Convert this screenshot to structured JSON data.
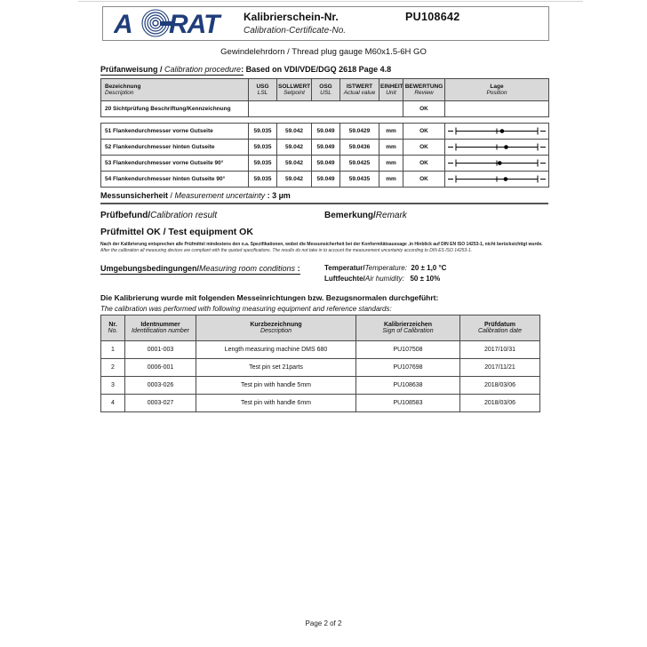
{
  "header": {
    "logo": {
      "letter_a": "A",
      "letters_rat": "RAT",
      "brand_color": "#1f3d7a"
    },
    "title_de": "Kalibrierschein-Nr.",
    "title_en": "Calibration-Certificate-No.",
    "certificate_no": "PU108642"
  },
  "subject_line": "Gewindelehrdorn / Thread plug gauge  M60x1.5-6H GO",
  "procedure": {
    "label_de": "Prüfanweisung / ",
    "label_en": "Calibration procedure",
    "colon": ":",
    "value": "Based on VDI/VDE/DGQ 2618 Page 4.8"
  },
  "measurement_table": {
    "headers": [
      {
        "de": "Bezeichnung",
        "en": "Description"
      },
      {
        "de": "USG",
        "en": "LSL"
      },
      {
        "de": "SOLLWERT",
        "en": "Setpoint"
      },
      {
        "de": "OSG",
        "en": "USL"
      },
      {
        "de": "ISTWERT",
        "en": "Actual value"
      },
      {
        "de": "EINHEIT",
        "en": "Unit"
      },
      {
        "de": "BEWERTUNG",
        "en": "Review"
      },
      {
        "de": "Lage",
        "en": "Position"
      }
    ],
    "visual_row": {
      "description": "20 Sichtprüfung Beschriftung/Kennzeichnung",
      "review": "OK"
    },
    "rows": [
      {
        "description": "51 Flankendurchmesser vorne Gutseite",
        "usg": "59.035",
        "sollwert": "59.042",
        "osg": "59.049",
        "istwert": "59.0429",
        "unit": "mm",
        "review": "OK"
      },
      {
        "description": "52 Flankendurchmesser hinten Gutseite",
        "usg": "59.035",
        "sollwert": "59.042",
        "osg": "59.049",
        "istwert": "59.0436",
        "unit": "mm",
        "review": "OK"
      },
      {
        "description": "53 Flankendurchmesser vorne Gutseite 90°",
        "usg": "59.035",
        "sollwert": "59.042",
        "osg": "59.049",
        "istwert": "59.0425",
        "unit": "mm",
        "review": "OK"
      },
      {
        "description": "54 Flankendurchmesser hinten Gutseite 90°",
        "usg": "59.035",
        "sollwert": "59.042",
        "osg": "59.049",
        "istwert": "59.0435",
        "unit": "mm",
        "review": "OK"
      }
    ]
  },
  "uncertainty": {
    "label_de": "Messunsicherheit",
    "separator": " / ",
    "label_en": "Measurement uncertainty",
    "colon": " : ",
    "value": "3 µm"
  },
  "result": {
    "heading_de": "Prüfbefund/",
    "heading_en": "Calibration result",
    "remark_de": "Bemerkung/",
    "remark_en": "Remark",
    "statement": "Prüfmittel OK / Test equipment OK"
  },
  "disclaimer": {
    "de": "Nach der Kalibrierung entsprechen alle Prüfmittel mindestens den o.a. Spezifikationen, wobei die Messunsicherheit bei der Konformitätsaussage ,in Hinblick auf DIN EN ISO 14253-1, nicht berücksichtigt wurde.",
    "en": "After the calibration all measuring devices are compliant with the quoted specifications. The results do not take in to account the measurement uncertainty according to DIN ES ISO 14253-1."
  },
  "conditions": {
    "label_de": "Umgebungsbedingungen/",
    "label_en": "Measuring room conditions",
    "colon": " :",
    "temperature_label_de": "Temperatur/",
    "temperature_label_en": "Temperature:",
    "temperature_value": "20 ± 1,0 °C",
    "humidity_label_de": "Luftfeuchte/",
    "humidity_label_en": "Air humidity:",
    "humidity_value": "50 ± 10%"
  },
  "equipment_intro": {
    "de": "Die Kalibrierung wurde mit folgenden Messeinrichtungen bzw. Bezugsnormalen durchgeführt:",
    "en": "The calibration was performed with following measuring equipment and reference standards:"
  },
  "equipment_table": {
    "headers": [
      {
        "de": "Nr.",
        "en": "No."
      },
      {
        "de": "Identnummer",
        "en": "Identification number"
      },
      {
        "de": "Kurzbezeichnung",
        "en": "Description"
      },
      {
        "de": "Kalibrierzeichen",
        "en": "Sign of Calibration"
      },
      {
        "de": "Prüfdatum",
        "en": "Calibration date"
      }
    ],
    "rows": [
      {
        "no": "1",
        "id": "0001-003",
        "description": "Length measuring machine DMS 680",
        "sign": "PU107508",
        "date": "2017/10/31"
      },
      {
        "no": "2",
        "id": "0006-001",
        "description": "Test pin set 21parts",
        "sign": "PU107698",
        "date": "2017/11/21"
      },
      {
        "no": "3",
        "id": "0003-026",
        "description": "Test pin with handle 5mm",
        "sign": "PU108638",
        "date": "2018/03/06"
      },
      {
        "no": "4",
        "id": "0003-027",
        "description": "Test pin with handle 6mm",
        "sign": "PU108583",
        "date": "2018/03/06"
      }
    ]
  },
  "footer": {
    "page_label": "Page 2 of 2"
  }
}
